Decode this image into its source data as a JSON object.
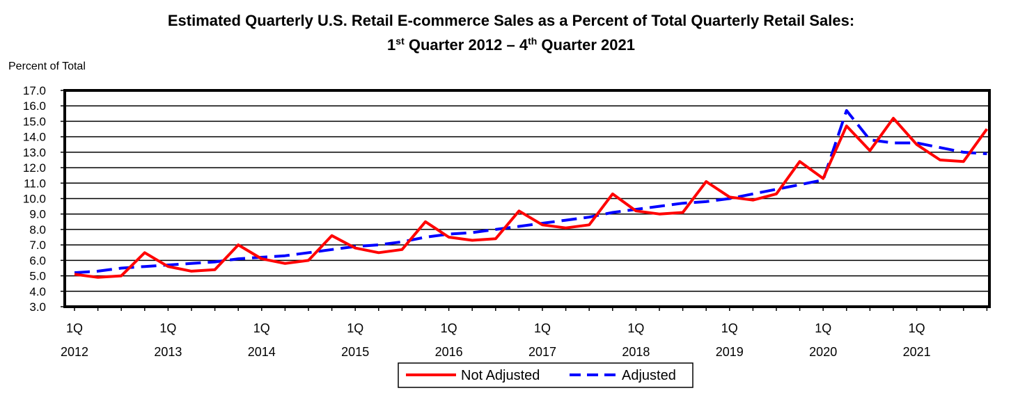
{
  "chart_data": {
    "type": "line",
    "title": {
      "line1": "Estimated Quarterly U.S. Retail E-commerce Sales as a Percent of Total Quarterly Retail Sales:",
      "line2_parts": [
        "1",
        "st",
        " Quarter 2012 – 4",
        "th",
        " Quarter 2021"
      ]
    },
    "ylabel": "Percent of Total",
    "xlabel": "",
    "ylim": [
      3.0,
      17.0
    ],
    "yticks": [
      "3.0",
      "4.0",
      "5.0",
      "6.0",
      "7.0",
      "8.0",
      "9.0",
      "10.0",
      "11.0",
      "12.0",
      "13.0",
      "14.0",
      "15.0",
      "16.0",
      "17.0"
    ],
    "x_labels": [
      {
        "quarter": "1Q",
        "year": "2012"
      },
      {
        "quarter": "1Q",
        "year": "2013"
      },
      {
        "quarter": "1Q",
        "year": "2014"
      },
      {
        "quarter": "1Q",
        "year": "2015"
      },
      {
        "quarter": "1Q",
        "year": "2016"
      },
      {
        "quarter": "1Q",
        "year": "2017"
      },
      {
        "quarter": "1Q",
        "year": "2018"
      },
      {
        "quarter": "1Q",
        "year": "2019"
      },
      {
        "quarter": "1Q",
        "year": "2020"
      },
      {
        "quarter": "1Q",
        "year": "2021"
      }
    ],
    "categories": [
      "2012Q1",
      "2012Q2",
      "2012Q3",
      "2012Q4",
      "2013Q1",
      "2013Q2",
      "2013Q3",
      "2013Q4",
      "2014Q1",
      "2014Q2",
      "2014Q3",
      "2014Q4",
      "2015Q1",
      "2015Q2",
      "2015Q3",
      "2015Q4",
      "2016Q1",
      "2016Q2",
      "2016Q3",
      "2016Q4",
      "2017Q1",
      "2017Q2",
      "2017Q3",
      "2017Q4",
      "2018Q1",
      "2018Q2",
      "2018Q3",
      "2018Q4",
      "2019Q1",
      "2019Q2",
      "2019Q3",
      "2019Q4",
      "2020Q1",
      "2020Q2",
      "2020Q3",
      "2020Q4",
      "2021Q1",
      "2021Q2",
      "2021Q3",
      "2021Q4"
    ],
    "series": [
      {
        "name": "Not Adjusted",
        "color": "#ff0000",
        "dash": "solid",
        "values": [
          5.1,
          4.9,
          5.0,
          6.5,
          5.6,
          5.3,
          5.4,
          7.0,
          6.1,
          5.8,
          6.0,
          7.6,
          6.8,
          6.5,
          6.7,
          8.5,
          7.5,
          7.3,
          7.4,
          9.2,
          8.3,
          8.1,
          8.3,
          10.3,
          9.2,
          9.0,
          9.1,
          11.1,
          10.1,
          9.9,
          10.3,
          12.4,
          11.3,
          14.7,
          13.1,
          15.2,
          13.5,
          12.5,
          12.4,
          14.5
        ]
      },
      {
        "name": "Adjusted",
        "color": "#0000ff",
        "dash": "dashed",
        "values": [
          5.2,
          5.3,
          5.5,
          5.6,
          5.7,
          5.8,
          5.9,
          6.1,
          6.2,
          6.3,
          6.5,
          6.7,
          6.9,
          7.0,
          7.2,
          7.5,
          7.7,
          7.8,
          8.0,
          8.2,
          8.4,
          8.6,
          8.8,
          9.1,
          9.3,
          9.5,
          9.7,
          9.8,
          10.0,
          10.3,
          10.6,
          10.9,
          11.2,
          15.7,
          13.8,
          13.6,
          13.6,
          13.3,
          13.0,
          12.9
        ]
      }
    ],
    "legend_position": "bottom-center",
    "grid": true
  }
}
